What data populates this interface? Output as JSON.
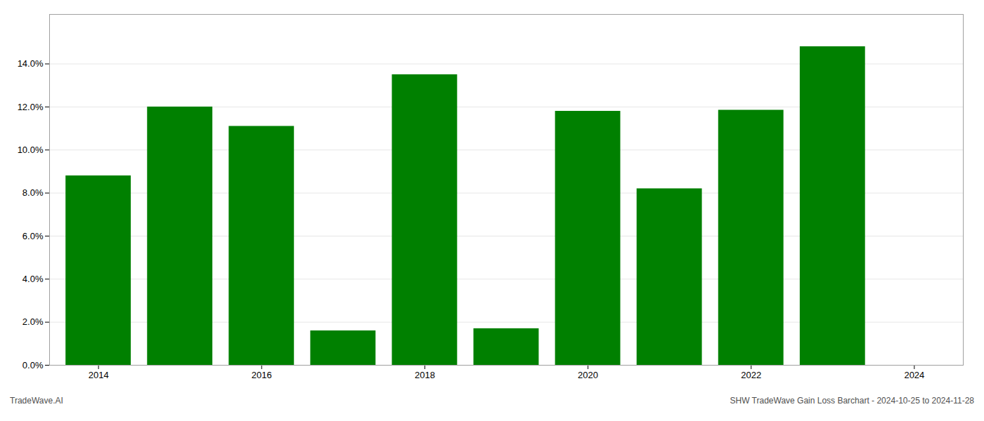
{
  "chart_data": {
    "type": "bar",
    "x": [
      2014,
      2015,
      2016,
      2017,
      2018,
      2019,
      2020,
      2021,
      2022,
      2023
    ],
    "values": [
      0.088,
      0.12,
      0.111,
      0.016,
      0.135,
      0.017,
      0.118,
      0.082,
      0.1185,
      0.148
    ],
    "color": "#008000",
    "xlim": [
      2013.4,
      2024.6
    ],
    "xticks": [
      2014,
      2016,
      2018,
      2020,
      2022,
      2024
    ],
    "ylim": [
      0,
      0.163
    ],
    "yticks": [
      {
        "value": 0.0,
        "label": "0.0%"
      },
      {
        "value": 0.02,
        "label": "2.0%"
      },
      {
        "value": 0.04,
        "label": "4.0%"
      },
      {
        "value": 0.06,
        "label": "6.0%"
      },
      {
        "value": 0.08,
        "label": "8.0%"
      },
      {
        "value": 0.1,
        "label": "10.0%"
      },
      {
        "value": 0.12,
        "label": "12.0%"
      },
      {
        "value": 0.14,
        "label": "14.0%"
      }
    ],
    "grid": true,
    "annotations": [
      "TradeWave.AI",
      "SHW TradeWave Gain Loss Barchart - 2024-10-25 to 2024-11-28"
    ]
  }
}
